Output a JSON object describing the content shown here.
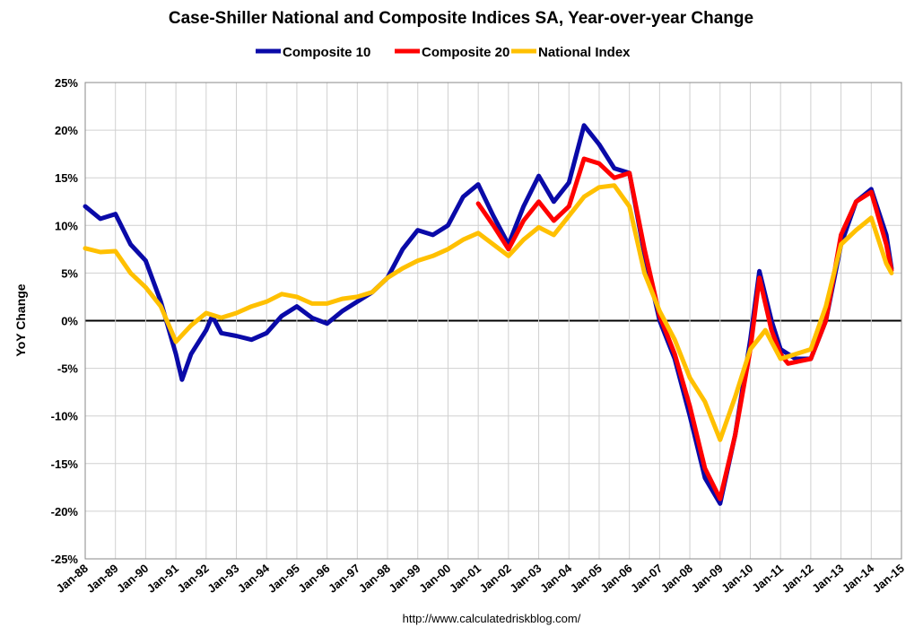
{
  "chart_data": {
    "type": "line",
    "title": "Case-Shiller National and Composite Indices SA, Year-over-year Change",
    "ylabel": "YoY Change",
    "source": "http://www.calculatedriskblog.com/",
    "xlim": [
      1988,
      2015
    ],
    "xticks": [
      {
        "value": 1988,
        "label": "Jan-88"
      },
      {
        "value": 1989,
        "label": "Jan-89"
      },
      {
        "value": 1990,
        "label": "Jan-90"
      },
      {
        "value": 1991,
        "label": "Jan-91"
      },
      {
        "value": 1992,
        "label": "Jan-92"
      },
      {
        "value": 1993,
        "label": "Jan-93"
      },
      {
        "value": 1994,
        "label": "Jan-94"
      },
      {
        "value": 1995,
        "label": "Jan-95"
      },
      {
        "value": 1996,
        "label": "Jan-96"
      },
      {
        "value": 1997,
        "label": "Jan-97"
      },
      {
        "value": 1998,
        "label": "Jan-98"
      },
      {
        "value": 1999,
        "label": "Jan-99"
      },
      {
        "value": 2000,
        "label": "Jan-00"
      },
      {
        "value": 2001,
        "label": "Jan-01"
      },
      {
        "value": 2002,
        "label": "Jan-02"
      },
      {
        "value": 2003,
        "label": "Jan-03"
      },
      {
        "value": 2004,
        "label": "Jan-04"
      },
      {
        "value": 2005,
        "label": "Jan-05"
      },
      {
        "value": 2006,
        "label": "Jan-06"
      },
      {
        "value": 2007,
        "label": "Jan-07"
      },
      {
        "value": 2008,
        "label": "Jan-08"
      },
      {
        "value": 2009,
        "label": "Jan-09"
      },
      {
        "value": 2010,
        "label": "Jan-10"
      },
      {
        "value": 2011,
        "label": "Jan-11"
      },
      {
        "value": 2012,
        "label": "Jan-12"
      },
      {
        "value": 2013,
        "label": "Jan-13"
      },
      {
        "value": 2014,
        "label": "Jan-14"
      },
      {
        "value": 2015,
        "label": "Jan-15"
      }
    ],
    "ylim": [
      -25,
      25
    ],
    "yticks": [
      {
        "value": -25,
        "label": "-25%"
      },
      {
        "value": -20,
        "label": "-20%"
      },
      {
        "value": -15,
        "label": "-15%"
      },
      {
        "value": -10,
        "label": "-10%"
      },
      {
        "value": -5,
        "label": "-5%"
      },
      {
        "value": 0,
        "label": "0%"
      },
      {
        "value": 5,
        "label": "5%"
      },
      {
        "value": 10,
        "label": "10%"
      },
      {
        "value": 15,
        "label": "15%"
      },
      {
        "value": 20,
        "label": "20%"
      },
      {
        "value": 25,
        "label": "25%"
      }
    ],
    "grid": true,
    "legend": "top",
    "series": [
      {
        "name": "Composite 10",
        "color": "#0a0aa8",
        "x": [
          1988,
          1988.5,
          1989,
          1989.5,
          1990,
          1990.5,
          1991,
          1991.2,
          1991.5,
          1992,
          1992.2,
          1992.5,
          1993,
          1993.5,
          1994,
          1994.5,
          1995,
          1995.5,
          1996,
          1996.5,
          1997,
          1997.5,
          1998,
          1998.5,
          1999,
          1999.5,
          2000,
          2000.5,
          2001,
          2001.5,
          2002,
          2002.5,
          2003,
          2003.5,
          2004,
          2004.5,
          2005,
          2005.5,
          2006,
          2006.5,
          2007,
          2007.5,
          2008,
          2008.5,
          2009,
          2009.5,
          2010,
          2010.3,
          2010.7,
          2011,
          2011.5,
          2012,
          2012.5,
          2013,
          2013.5,
          2014,
          2014.5,
          2014.67
        ],
        "values": [
          12,
          10.7,
          11.2,
          8,
          6.3,
          2,
          -3.5,
          -6.2,
          -3.5,
          -1,
          0.5,
          -1.3,
          -1.6,
          -2,
          -1.3,
          0.5,
          1.5,
          0.3,
          -0.3,
          1,
          2,
          3,
          4.5,
          7.5,
          9.5,
          9,
          10,
          13,
          14.3,
          11,
          8,
          12,
          15.2,
          12.5,
          14.5,
          20.5,
          18.5,
          16,
          15.5,
          7,
          0,
          -4,
          -10,
          -16.5,
          -19.2,
          -12,
          -2,
          5.2,
          0,
          -3,
          -4,
          -4,
          0,
          8,
          12.5,
          13.8,
          9,
          5.5
        ]
      },
      {
        "name": "Composite 20",
        "color": "#ff0000",
        "x": [
          2001,
          2001.5,
          2002,
          2002.5,
          2003,
          2003.5,
          2004,
          2004.5,
          2005,
          2005.5,
          2006,
          2006.5,
          2007,
          2007.5,
          2008,
          2008.5,
          2009,
          2009.5,
          2010,
          2010.3,
          2010.7,
          2011,
          2011.25,
          2012,
          2012.5,
          2013,
          2013.5,
          2014,
          2014.5,
          2014.67
        ],
        "values": [
          12.3,
          10,
          7.5,
          10.5,
          12.5,
          10.5,
          12,
          17,
          16.5,
          15,
          15.5,
          7.5,
          0.5,
          -3.5,
          -9,
          -15.5,
          -18.7,
          -12,
          -3,
          4.5,
          -1,
          -3.5,
          -4.5,
          -4,
          0,
          9,
          12.5,
          13.5,
          8,
          5.3
        ]
      },
      {
        "name": "National Index",
        "color": "#ffc000",
        "x": [
          1988,
          1988.5,
          1989,
          1989.5,
          1990,
          1990.5,
          1991,
          1991.5,
          1992,
          1992.5,
          1993,
          1993.5,
          1994,
          1994.5,
          1995,
          1995.5,
          1996,
          1996.5,
          1997,
          1997.5,
          1998,
          1998.5,
          1999,
          1999.5,
          2000,
          2000.5,
          2001,
          2001.5,
          2002,
          2002.5,
          2003,
          2003.5,
          2004,
          2004.5,
          2005,
          2005.5,
          2006,
          2006.5,
          2007,
          2007.5,
          2008,
          2008.5,
          2009,
          2009.5,
          2010,
          2010.5,
          2011,
          2011.5,
          2012,
          2012.5,
          2013,
          2013.5,
          2014,
          2014.5,
          2014.67
        ],
        "values": [
          7.6,
          7.2,
          7.3,
          5,
          3.5,
          1.5,
          -2.2,
          -0.5,
          0.8,
          0.3,
          0.8,
          1.5,
          2,
          2.8,
          2.5,
          1.8,
          1.8,
          2.3,
          2.5,
          3,
          4.5,
          5.5,
          6.3,
          6.8,
          7.5,
          8.5,
          9.2,
          8,
          6.8,
          8.5,
          9.8,
          9,
          11,
          13,
          14,
          14.2,
          12,
          5,
          1,
          -2,
          -6,
          -8.5,
          -12.5,
          -8,
          -3,
          -1,
          -4,
          -3.5,
          -3,
          1.5,
          8,
          9.5,
          10.8,
          6,
          5
        ]
      }
    ]
  }
}
